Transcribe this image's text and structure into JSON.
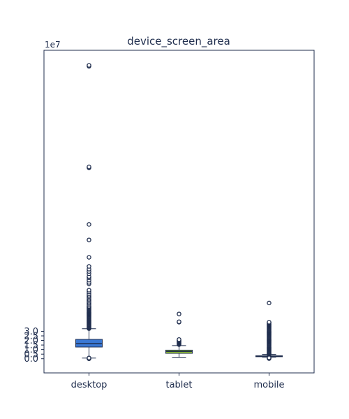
{
  "chart_data": {
    "type": "box",
    "title": "device_screen_area",
    "xlabel": "",
    "ylabel": "",
    "y_scale_label": "1e7",
    "ylim": [
      -1.55,
      33.75
    ],
    "y_ticks": [
      0.0,
      0.5,
      1.0,
      1.5,
      2.0,
      2.5,
      3.0
    ],
    "y_tick_labels": [
      "0.0",
      "0.5",
      "1.0",
      "1.5",
      "2.0",
      "2.5",
      "3.0"
    ],
    "categories": [
      "desktop",
      "tablet",
      "mobile"
    ],
    "grid": false,
    "colors": {
      "desktop": "#3a78d4",
      "tablet": "#9acd32",
      "mobile": "#2e5fa8",
      "outline": "#1f2d4d"
    },
    "boxes": [
      {
        "name": "desktop",
        "whisker_low": 0.07,
        "q1": 1.28,
        "median": 1.65,
        "q3": 2.12,
        "whisker_high": 3.28,
        "outliers": [
          0.0,
          0.05,
          0.08,
          3.3,
          3.35,
          3.42,
          3.5,
          3.58,
          3.66,
          3.74,
          3.82,
          3.9,
          3.98,
          4.06,
          4.14,
          4.22,
          4.3,
          4.38,
          4.46,
          4.54,
          4.62,
          4.7,
          4.78,
          4.86,
          4.94,
          5.02,
          5.1,
          5.18,
          5.26,
          5.34,
          5.42,
          5.5,
          5.58,
          5.66,
          5.74,
          5.9,
          6.05,
          6.2,
          6.35,
          6.5,
          6.65,
          6.8,
          6.95,
          7.1,
          7.3,
          7.5,
          8.2,
          8.35,
          8.6,
          8.85,
          9.0,
          9.3,
          9.55,
          9.8,
          10.1,
          11.1,
          13.0,
          14.7,
          20.9,
          21.0,
          32.0,
          32.1
        ]
      },
      {
        "name": "tablet",
        "whisker_low": 0.16,
        "q1": 0.59,
        "median": 0.79,
        "q3": 0.94,
        "whisker_high": 1.44,
        "outliers": [
          1.55,
          1.62,
          1.7,
          1.78,
          1.85,
          1.92,
          2.0,
          2.1,
          4.0,
          4.05,
          4.9
        ]
      },
      {
        "name": "mobile",
        "whisker_low": 0.18,
        "q1": 0.22,
        "median": 0.3,
        "q3": 0.33,
        "whisker_high": 0.47,
        "outliers": [
          0.02,
          0.06,
          0.1,
          0.5,
          0.55,
          0.6,
          0.68,
          0.76,
          0.84,
          0.92,
          1.0,
          1.08,
          1.16,
          1.24,
          1.32,
          1.4,
          1.48,
          1.56,
          1.64,
          1.72,
          1.8,
          1.88,
          1.96,
          2.04,
          2.12,
          2.2,
          2.28,
          2.36,
          2.44,
          2.52,
          2.6,
          2.68,
          2.76,
          2.84,
          2.92,
          3.0,
          3.08,
          3.16,
          3.24,
          3.32,
          3.4,
          3.48,
          3.56,
          3.64,
          3.72,
          3.8,
          3.88,
          3.95,
          4.0,
          6.1
        ]
      }
    ]
  }
}
